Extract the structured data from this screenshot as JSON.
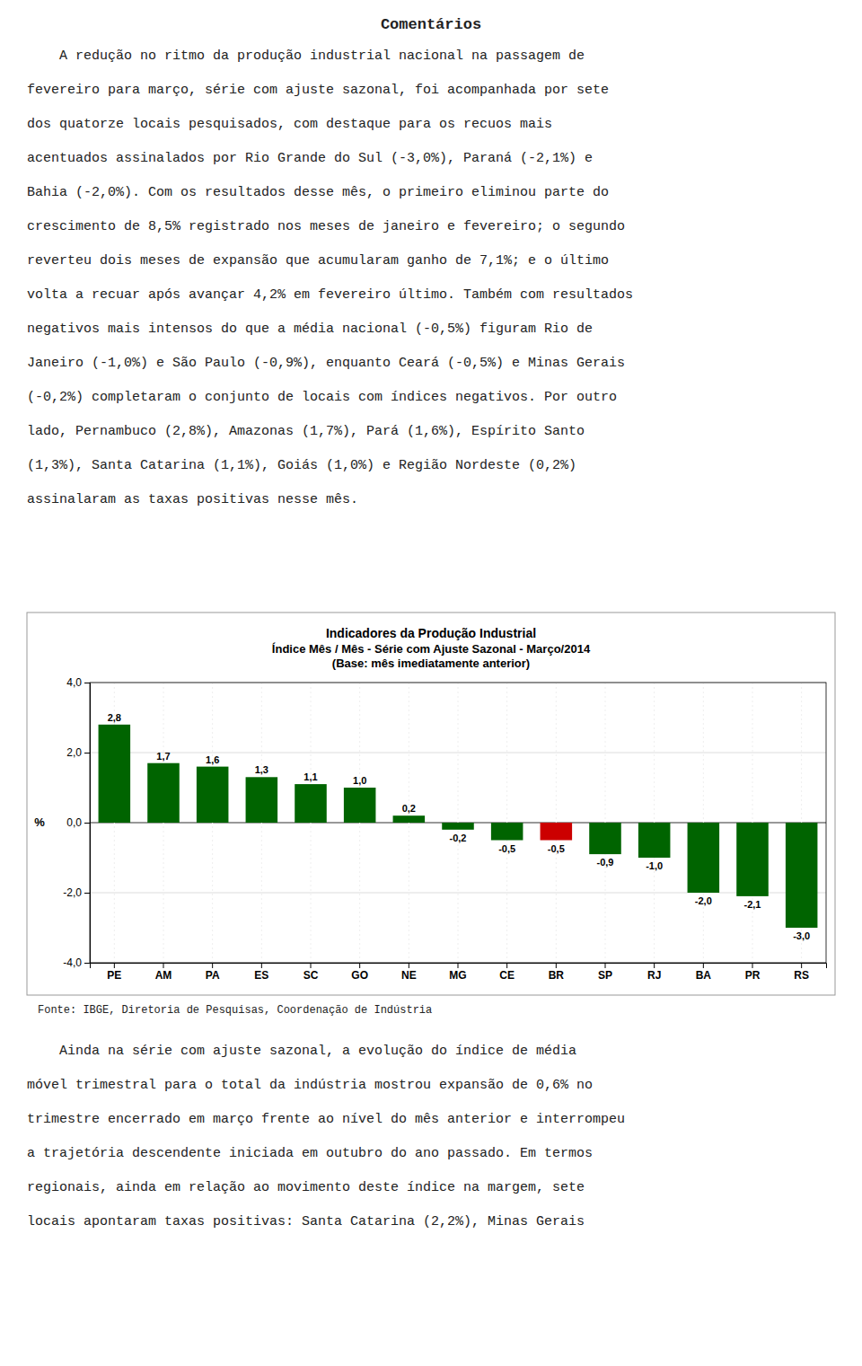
{
  "page_title": "Comentários",
  "before_lines": [
    "    A redução no ritmo da produção industrial nacional na passagem de",
    "fevereiro para março, série com ajuste sazonal, foi acompanhada por sete",
    "dos quatorze locais pesquisados, com destaque para os recuos mais",
    "acentuados assinalados por Rio Grande do Sul (-3,0%), Paraná (-2,1%) e",
    "Bahia (-2,0%). Com os resultados desse mês, o primeiro eliminou parte do",
    "crescimento de 8,5% registrado nos meses de janeiro e fevereiro; o segundo",
    "reverteu dois meses de expansão que acumularam ganho de 7,1%; e o último",
    "volta a recuar após avançar 4,2% em fevereiro último. Também com resultados",
    "negativos mais intensos do que a média nacional (-0,5%) figuram Rio de",
    "Janeiro (-1,0%) e São Paulo (-0,9%), enquanto Ceará (-0,5%) e Minas Gerais",
    "(-0,2%) completaram o conjunto de locais com índices negativos. Por outro",
    "lado, Pernambuco (2,8%), Amazonas (1,7%), Pará (1,6%), Espírito Santo",
    "(1,3%), Santa Catarina (1,1%), Goiás (1,0%) e Região Nordeste (0,2%)",
    "assinalaram as taxas positivas nesse mês."
  ],
  "after_lines": [
    "    Ainda na série com ajuste sazonal, a evolução do índice de média",
    "móvel trimestral para o total da indústria mostrou expansão de 0,6% no",
    "trimestre encerrado em março frente ao nível do mês anterior e interrompeu",
    "a trajetória descendente iniciada em outubro do ano passado. Em termos",
    "regionais, ainda em relação ao movimento deste índice na margem, sete",
    "locais apontaram taxas positivas: Santa Catarina (2,2%), Minas Gerais"
  ],
  "chart_data": {
    "type": "bar",
    "title": "Indicadores da Produção Industrial",
    "subtitle": [
      "Índice Mês / Mês - Série com Ajuste Sazonal - Março/2014",
      "(Base: mês imediatamente anterior)"
    ],
    "categories": [
      "PE",
      "AM",
      "PA",
      "ES",
      "SC",
      "GO",
      "NE",
      "MG",
      "CE",
      "BR",
      "SP",
      "RJ",
      "BA",
      "PR",
      "RS"
    ],
    "values": [
      2.8,
      1.7,
      1.6,
      1.3,
      1.1,
      1.0,
      0.2,
      -0.2,
      -0.5,
      -0.5,
      -0.9,
      -1.0,
      -2.0,
      -2.1,
      -3.0
    ],
    "value_labels": [
      "2,8",
      "1,7",
      "1,6",
      "1,3",
      "1,1",
      "1,0",
      "0,2",
      "-0,2",
      "-0,5",
      "-0,5",
      "-0,9",
      "-1,0",
      "-2,0",
      "-2,1",
      "-3,0"
    ],
    "data_labels": true,
    "colors": [
      "#006400",
      "#006400",
      "#006400",
      "#006400",
      "#006400",
      "#006400",
      "#006400",
      "#006400",
      "#006400",
      "#cc0000",
      "#006400",
      "#006400",
      "#006400",
      "#006400",
      "#006400"
    ],
    "y_label": "%",
    "ylim": [
      -4.0,
      4.0
    ],
    "yticks": [
      {
        "value": -4.0,
        "label": "-4,0"
      },
      {
        "value": -2.0,
        "label": "-2,0"
      },
      {
        "value": 0.0,
        "label": "0,0"
      },
      {
        "value": 2.0,
        "label": "2,0"
      },
      {
        "value": 4.0,
        "label": "4,0"
      }
    ],
    "grid": true,
    "annotations": [
      "Fonte: IBGE, Diretoria de Pesquisas, Coordenação de Indústria"
    ]
  }
}
